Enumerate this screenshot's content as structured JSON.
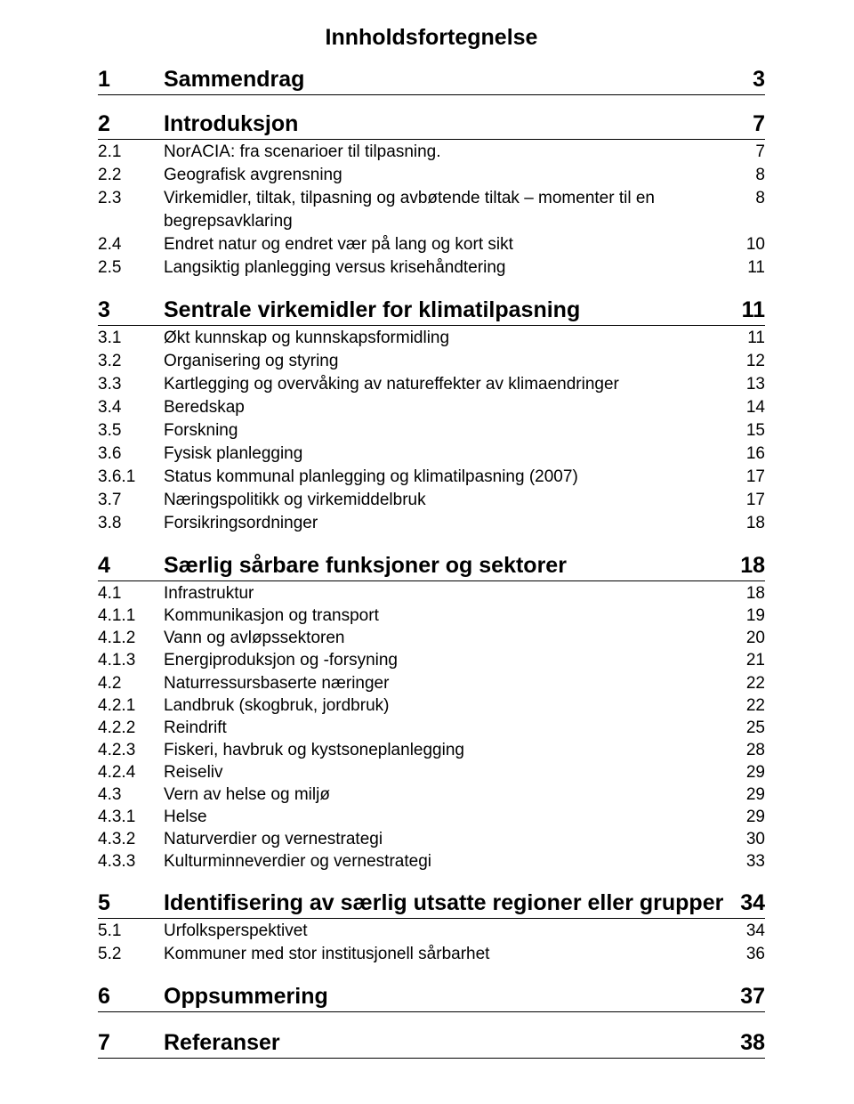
{
  "title": "Innholdsfortegnelse",
  "sections": [
    {
      "num": "1",
      "label": "Sammendrag",
      "page": "3",
      "entries": []
    },
    {
      "num": "2",
      "label": "Introduksjon",
      "page": "7",
      "entries": [
        {
          "num": "2.1",
          "label": "NorACIA: fra scenarioer til tilpasning.",
          "page": "7"
        },
        {
          "num": "2.2",
          "label": "Geografisk avgrensning",
          "page": "8"
        },
        {
          "num": "2.3",
          "label": "Virkemidler, tiltak, tilpasning og avbøtende tiltak – momenter til en begrepsavklaring",
          "page": "8"
        },
        {
          "num": "2.4",
          "label": "Endret natur og endret vær på lang og kort sikt",
          "page": "10"
        },
        {
          "num": "2.5",
          "label": "Langsiktig planlegging versus krisehåndtering",
          "page": "11"
        }
      ]
    },
    {
      "num": "3",
      "label": "Sentrale virkemidler for klimatilpasning",
      "page": "11",
      "entries": [
        {
          "num": "3.1",
          "label": "Økt kunnskap og kunnskapsformidling",
          "page": "11"
        },
        {
          "num": "3.2",
          "label": "Organisering og styring",
          "page": "12"
        },
        {
          "num": "3.3",
          "label": "Kartlegging og overvåking av natureffekter av klimaendringer",
          "page": "13"
        },
        {
          "num": "3.4",
          "label": "Beredskap",
          "page": "14"
        },
        {
          "num": "3.5",
          "label": "Forskning",
          "page": "15"
        },
        {
          "num": "3.6",
          "label": "Fysisk planlegging",
          "page": "16"
        },
        {
          "num": "3.6.1",
          "label": "Status kommunal planlegging og klimatilpasning (2007)",
          "page": "17"
        },
        {
          "num": "3.7",
          "label": "Næringspolitikk og virkemiddelbruk",
          "page": "17"
        },
        {
          "num": "3.8",
          "label": "Forsikringsordninger",
          "page": "18"
        }
      ]
    },
    {
      "num": "4",
      "label": "Særlig sårbare funksjoner og sektorer",
      "page": "18",
      "entries": [
        {
          "num": "4.1",
          "label": "Infrastruktur",
          "page": "18"
        },
        {
          "num": "4.1.1",
          "label": "Kommunikasjon og transport",
          "page": "19"
        },
        {
          "num": "4.1.2",
          "label": "Vann og avløpssektoren",
          "page": "20"
        },
        {
          "num": "4.1.3",
          "label": "Energiproduksjon og -forsyning",
          "page": "21"
        },
        {
          "num": "4.2",
          "label": "Naturressursbaserte næringer",
          "page": "22"
        },
        {
          "num": "4.2.1",
          "label": "Landbruk (skogbruk, jordbruk)",
          "page": "22"
        },
        {
          "num": "4.2.2",
          "label": "Reindrift",
          "page": "25"
        },
        {
          "num": "4.2.3",
          "label": "Fiskeri, havbruk og kystsoneplanlegging",
          "page": "28"
        },
        {
          "num": "4.2.4",
          "label": "Reiseliv",
          "page": "29"
        },
        {
          "num": "4.3",
          "label": "Vern av helse og miljø",
          "page": "29"
        },
        {
          "num": "4.3.1",
          "label": "Helse",
          "page": "29"
        },
        {
          "num": "4.3.2",
          "label": "Naturverdier og vernestrategi",
          "page": "30"
        },
        {
          "num": "4.3.3",
          "label": "Kulturminneverdier og vernestrategi",
          "page": "33"
        }
      ]
    },
    {
      "num": "5",
      "label": "Identifisering av særlig utsatte regioner eller grupper",
      "page": "34",
      "entries": [
        {
          "num": "5.1",
          "label": "Urfolksperspektivet",
          "page": "34"
        },
        {
          "num": "5.2",
          "label": "Kommuner med stor institusjonell sårbarhet",
          "page": "36"
        }
      ]
    },
    {
      "num": "6",
      "label": "Oppsummering",
      "page": "37",
      "entries": []
    },
    {
      "num": "7",
      "label": "Referanser",
      "page": "38",
      "entries": []
    }
  ]
}
